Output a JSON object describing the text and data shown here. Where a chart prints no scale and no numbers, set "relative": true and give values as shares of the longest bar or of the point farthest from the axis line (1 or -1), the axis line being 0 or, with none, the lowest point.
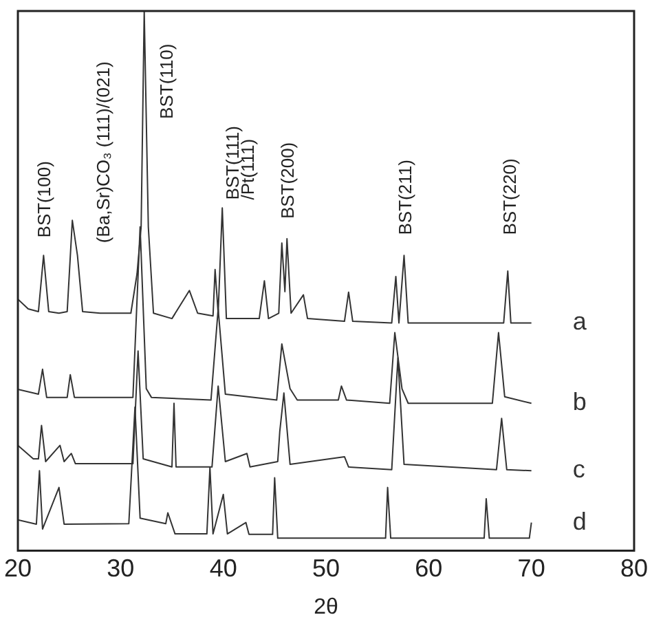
{
  "chart_data": {
    "type": "line",
    "relative": true,
    "xlabel": "2θ",
    "xlim": [
      20,
      80
    ],
    "xticks": [
      20,
      30,
      40,
      50,
      60,
      70,
      80
    ],
    "grid": false,
    "marker": "none",
    "line_style": "solid",
    "series": [
      {
        "name": "a",
        "color": "#333333",
        "x": [
          20,
          21,
          22,
          22.5,
          23,
          24,
          24.8,
          25.3,
          25.8,
          26.3,
          28,
          31,
          31.6,
          32.0,
          32.3,
          32.7,
          33.2,
          35,
          36.7,
          37.5,
          39,
          39.2,
          39.5,
          39.9,
          40.3,
          43.5,
          44.0,
          44.4,
          45.4,
          45.7,
          46.0,
          46.2,
          46.6,
          47.8,
          48.2,
          51.8,
          52.2,
          52.6,
          56.4,
          56.8,
          57.1,
          57.6,
          58.0,
          67.3,
          67.7,
          68.0,
          70
        ],
        "values": [
          0.466,
          0.448,
          0.443,
          0.547,
          0.443,
          0.44,
          0.443,
          0.612,
          0.547,
          0.443,
          0.44,
          0.44,
          0.513,
          0.6,
          1,
          0.6,
          0.44,
          0.43,
          0.482,
          0.44,
          0.435,
          0.521,
          0.44,
          0.635,
          0.43,
          0.43,
          0.5,
          0.43,
          0.44,
          0.57,
          0.48,
          0.578,
          0.44,
          0.474,
          0.43,
          0.425,
          0.479,
          0.425,
          0.422,
          0.508,
          0.422,
          0.547,
          0.422,
          0.422,
          0.518,
          0.422,
          0.422
        ]
      },
      {
        "name": "b",
        "color": "#333333",
        "x": [
          20,
          22.0,
          22.4,
          22.8,
          24.8,
          25.1,
          25.5,
          31.2,
          31.9,
          32.5,
          33,
          38.8,
          39.5,
          40.2,
          45.2,
          45.7,
          46.5,
          47.2,
          51.2,
          51.5,
          52,
          56.2,
          56.7,
          57.4,
          58,
          66.2,
          66.8,
          67.4,
          70
        ],
        "values": [
          0.299,
          0.29,
          0.336,
          0.284,
          0.284,
          0.326,
          0.284,
          0.284,
          0.6,
          0.3,
          0.284,
          0.279,
          0.448,
          0.29,
          0.279,
          0.383,
          0.3,
          0.279,
          0.279,
          0.305,
          0.279,
          0.273,
          0.404,
          0.3,
          0.273,
          0.273,
          0.404,
          0.285,
          0.273
        ]
      },
      {
        "name": "c",
        "color": "#333333",
        "x": [
          20,
          21.5,
          22.0,
          22.3,
          22.7,
          24.1,
          24.5,
          25.2,
          25.6,
          31.2,
          31.7,
          32.2,
          35.0,
          35.2,
          35.4,
          38.9,
          39.5,
          40.2,
          42.3,
          42.6,
          45.3,
          45.5,
          45.9,
          46.5,
          51.8,
          52.2,
          56.4,
          57.0,
          57.6,
          66.6,
          67.1,
          67.6,
          70
        ],
        "values": [
          0.195,
          0.17,
          0.17,
          0.232,
          0.165,
          0.195,
          0.165,
          0.18,
          0.161,
          0.161,
          0.37,
          0.17,
          0.155,
          0.273,
          0.155,
          0.155,
          0.305,
          0.165,
          0.18,
          0.155,
          0.165,
          0.221,
          0.292,
          0.16,
          0.174,
          0.155,
          0.15,
          0.357,
          0.16,
          0.15,
          0.245,
          0.15,
          0.148
        ]
      },
      {
        "name": "d",
        "color": "#333333",
        "x": [
          20,
          21.8,
          22.1,
          22.4,
          24.0,
          24.5,
          30.8,
          31.4,
          31.9,
          34.4,
          34.6,
          35.3,
          38.4,
          38.7,
          39.0,
          40.0,
          40.4,
          42.2,
          42.5,
          44.8,
          45.0,
          45.3,
          55.8,
          56.0,
          56.3,
          65.4,
          65.6,
          65.9,
          69.8,
          70.0
        ],
        "values": [
          0.057,
          0.049,
          0.148,
          0.04,
          0.117,
          0.049,
          0.05,
          0.266,
          0.06,
          0.05,
          0.07,
          0.031,
          0.031,
          0.154,
          0.031,
          0.104,
          0.031,
          0.052,
          0.03,
          0.03,
          0.135,
          0.023,
          0.023,
          0.117,
          0.023,
          0.023,
          0.096,
          0.023,
          0.023,
          0.052
        ]
      }
    ],
    "annotations": [
      "BST(100)",
      "(Ba,Sr)CO₃ (111)/(021)",
      "BST(110)",
      "BST(111)",
      "/Pt(111)",
      "BST(200)",
      "BST(211)",
      "BST(220)"
    ]
  }
}
